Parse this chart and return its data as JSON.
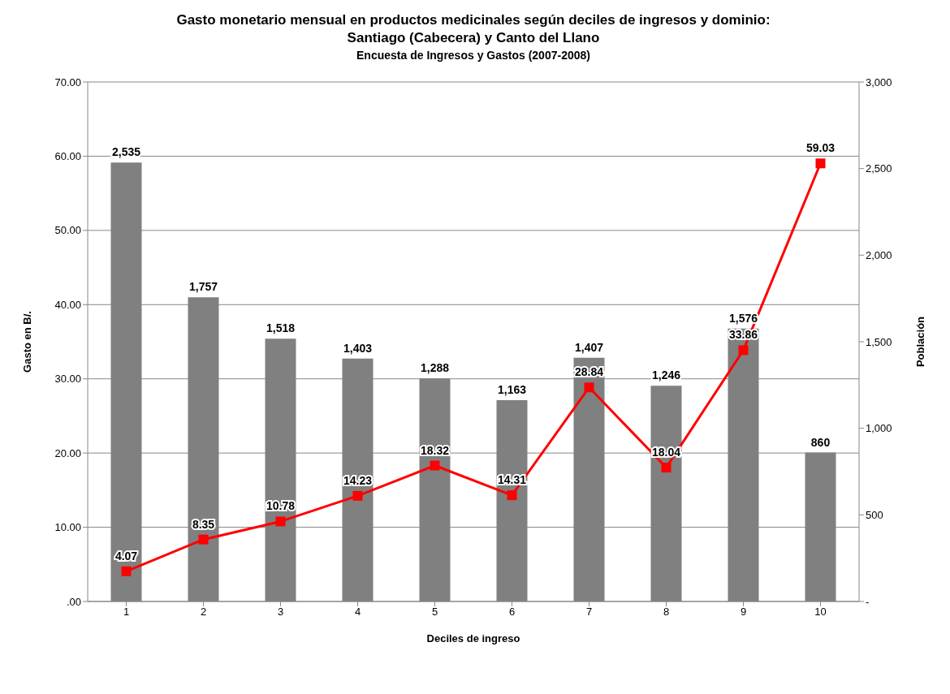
{
  "chart_data": {
    "type": "bar",
    "title": "Gasto monetario mensual en productos medicinales según deciles de ingresos y dominio: Santiago (Cabecera) y Canto del Llano",
    "subtitle": "Encuesta de Ingresos y Gastos (2007-2008)",
    "xlabel": "Deciles de ingreso",
    "ylabel": "Gasto en B/.",
    "y2label": "Población",
    "categories": [
      "1",
      "2",
      "3",
      "4",
      "5",
      "6",
      "7",
      "8",
      "9",
      "10"
    ],
    "series": [
      {
        "axis": "y2",
        "color": "#808080",
        "values": [
          2535,
          1757,
          1518,
          1403,
          1288,
          1163,
          1407,
          1246,
          1576,
          860
        ],
        "value_labels": [
          "2,535",
          "1,757",
          "1,518",
          "1,403",
          "1,288",
          "1,163",
          "1,407",
          "1,246",
          "1,576",
          "860"
        ]
      },
      {
        "type": "line",
        "axis": "y",
        "color": "#ff0000",
        "marker": "square",
        "line_style": "solid",
        "values": [
          4.07,
          8.35,
          10.78,
          14.23,
          18.32,
          14.31,
          28.84,
          18.04,
          33.86,
          59.03
        ],
        "value_labels": [
          "4.07",
          "8.35",
          "10.78",
          "14.23",
          "18.32",
          "14.31",
          "28.84",
          "18.04",
          "33.86",
          "59.03"
        ]
      }
    ],
    "ylim": [
      0,
      70
    ],
    "yticks": [
      {
        "value": 0,
        "label": ".00"
      },
      {
        "value": 10,
        "label": "10.00"
      },
      {
        "value": 20,
        "label": "20.00"
      },
      {
        "value": 30,
        "label": "30.00"
      },
      {
        "value": 40,
        "label": "40.00"
      },
      {
        "value": 50,
        "label": "50.00"
      },
      {
        "value": 60,
        "label": "60.00"
      },
      {
        "value": 70,
        "label": "70.00"
      }
    ],
    "y2lim": [
      0,
      3000
    ],
    "y2ticks": [
      {
        "value": 0,
        "label": "-"
      },
      500,
      {
        "value": 1000,
        "label": "1,000"
      },
      {
        "value": 1500,
        "label": "1,500"
      },
      {
        "value": 2000,
        "label": "2,000"
      },
      {
        "value": 2500,
        "label": "2,500"
      },
      {
        "value": 3000,
        "label": "3,000"
      }
    ],
    "grid": "y"
  }
}
